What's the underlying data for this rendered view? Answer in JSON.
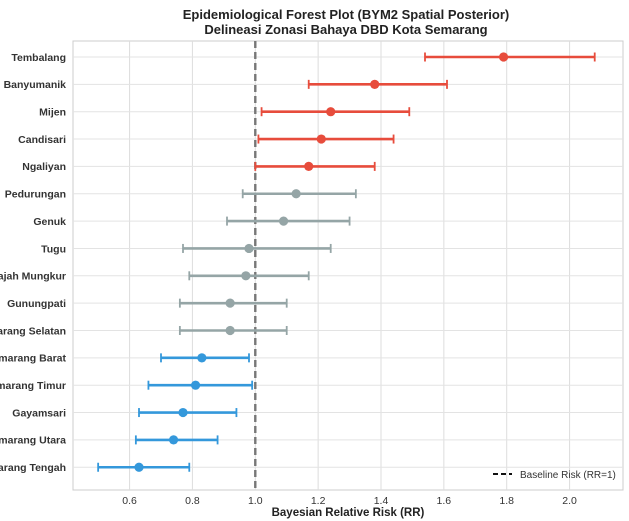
{
  "chart_data": {
    "type": "scatter",
    "title": "Epidemiological Forest Plot (BYM2 Spatial Posterior)",
    "subtitle": "Delineasi Zonasi Bahaya DBD Kota Semarang",
    "xlabel": "Bayesian Relative Risk (RR)",
    "ylabel": "",
    "xlim": [
      0.42,
      2.17
    ],
    "x_ticks": [
      0.6,
      0.8,
      1.0,
      1.2,
      1.4,
      1.6,
      1.8,
      2.0
    ],
    "x_tick_labels": [
      "0.6",
      "0.8",
      "1.0",
      "1.2",
      "1.4",
      "1.6",
      "1.8",
      "2.0"
    ],
    "grid": true,
    "reference_line": {
      "x": 1.0,
      "label": "Baseline Risk (RR=1)"
    },
    "legend_position": "bottom-right",
    "colors": {
      "high": "#e74c3c",
      "neutral": "#95a5a6",
      "low": "#3498db"
    },
    "rows": [
      {
        "name": "Tembalang",
        "rr": 1.79,
        "lo": 1.54,
        "hi": 2.08,
        "group": "high"
      },
      {
        "name": "Banyumanik",
        "rr": 1.38,
        "lo": 1.17,
        "hi": 1.61,
        "group": "high"
      },
      {
        "name": "Mijen",
        "rr": 1.24,
        "lo": 1.02,
        "hi": 1.49,
        "group": "high"
      },
      {
        "name": "Candisari",
        "rr": 1.21,
        "lo": 1.01,
        "hi": 1.44,
        "group": "high"
      },
      {
        "name": "Ngaliyan",
        "rr": 1.17,
        "lo": 1.0,
        "hi": 1.38,
        "group": "high"
      },
      {
        "name": "Pedurungan",
        "rr": 1.13,
        "lo": 0.96,
        "hi": 1.32,
        "group": "neutral"
      },
      {
        "name": "Genuk",
        "rr": 1.09,
        "lo": 0.91,
        "hi": 1.3,
        "group": "neutral"
      },
      {
        "name": "Tugu",
        "rr": 0.98,
        "lo": 0.77,
        "hi": 1.24,
        "group": "neutral"
      },
      {
        "name": "Gajah Mungkur",
        "rr": 0.97,
        "lo": 0.79,
        "hi": 1.17,
        "group": "neutral"
      },
      {
        "name": "Gunungpati",
        "rr": 0.92,
        "lo": 0.76,
        "hi": 1.1,
        "group": "neutral"
      },
      {
        "name": "Semarang Selatan",
        "rr": 0.92,
        "lo": 0.76,
        "hi": 1.1,
        "group": "neutral"
      },
      {
        "name": "Semarang Barat",
        "rr": 0.83,
        "lo": 0.7,
        "hi": 0.98,
        "group": "low"
      },
      {
        "name": "Semarang Timur",
        "rr": 0.81,
        "lo": 0.66,
        "hi": 0.99,
        "group": "low"
      },
      {
        "name": "Gayamsari",
        "rr": 0.77,
        "lo": 0.63,
        "hi": 0.94,
        "group": "low"
      },
      {
        "name": "Semarang Utara",
        "rr": 0.74,
        "lo": 0.62,
        "hi": 0.88,
        "group": "low"
      },
      {
        "name": "Semarang Tengah",
        "rr": 0.63,
        "lo": 0.5,
        "hi": 0.79,
        "group": "low"
      }
    ]
  }
}
